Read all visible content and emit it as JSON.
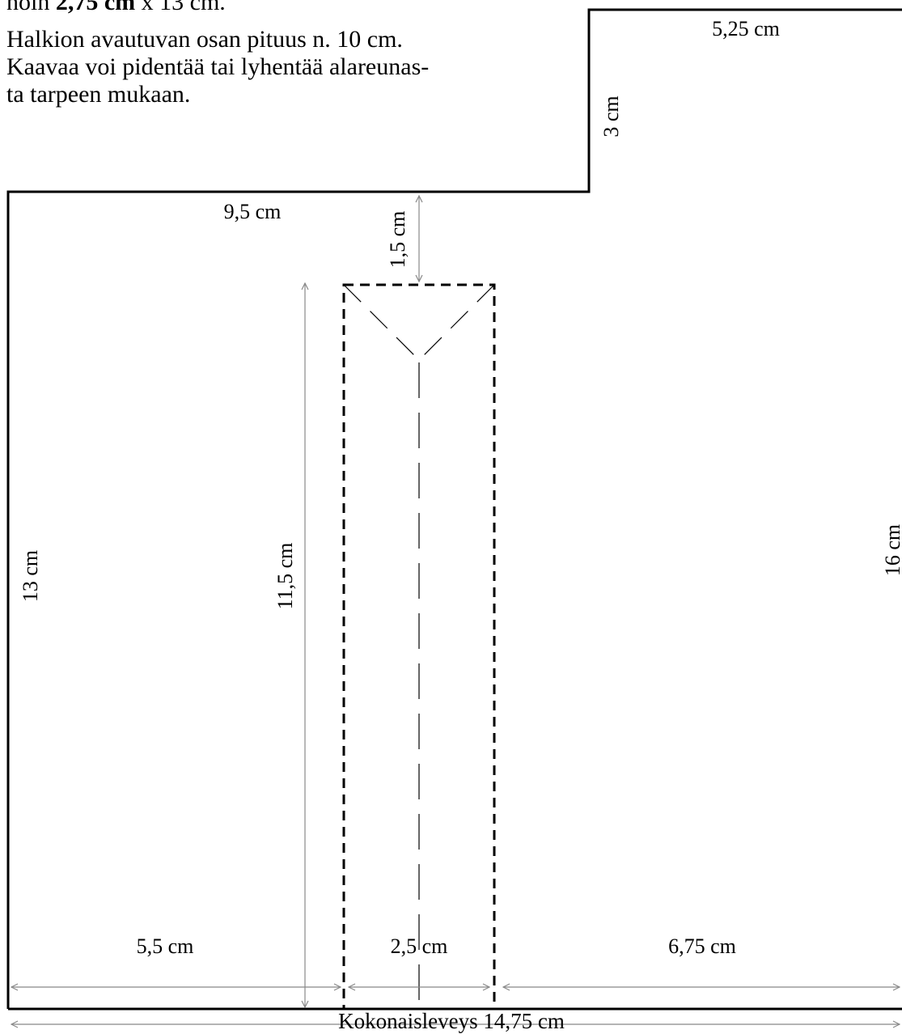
{
  "intro": {
    "line1_prefix": "noin ",
    "line1_bold": "2,75 cm",
    "line1_suffix": " x 13 cm.",
    "paragraph2": [
      "Halkion avautuvan osan pituus n. 10 cm.",
      "Kaavaa voi pidentää tai lyhentää alareunas-",
      "ta tarpeen mukaan."
    ]
  },
  "dimensions": {
    "top_width": "5,25 cm",
    "step_height": "3 cm",
    "left_top_width": "9,5 cm",
    "slit_offset": "1,5 cm",
    "left_height": "13 cm",
    "slit_height": "11,5 cm",
    "right_height": "16 cm",
    "bottom_left": "5,5 cm",
    "bottom_middle": "2,5 cm",
    "bottom_right": "6,75 cm",
    "total_width": "Kokonaisleveys 14,75 cm"
  },
  "colors": {
    "outline": "#000000",
    "dimension_line": "#888888"
  }
}
